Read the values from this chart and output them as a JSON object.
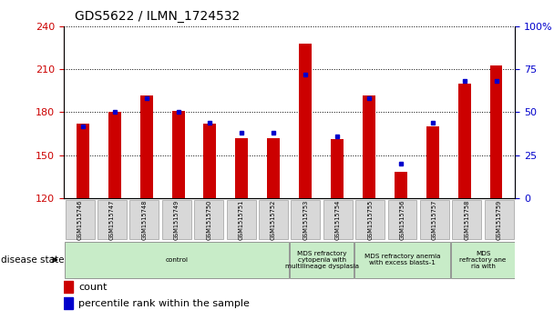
{
  "title": "GDS5622 / ILMN_1724532",
  "samples": [
    "GSM1515746",
    "GSM1515747",
    "GSM1515748",
    "GSM1515749",
    "GSM1515750",
    "GSM1515751",
    "GSM1515752",
    "GSM1515753",
    "GSM1515754",
    "GSM1515755",
    "GSM1515756",
    "GSM1515757",
    "GSM1515758",
    "GSM1515759"
  ],
  "counts": [
    172,
    180,
    192,
    181,
    172,
    162,
    162,
    228,
    161,
    192,
    138,
    170,
    200,
    213
  ],
  "percentiles": [
    42,
    50,
    58,
    50,
    44,
    38,
    38,
    72,
    36,
    58,
    20,
    44,
    68,
    68
  ],
  "ylim_left": [
    120,
    240
  ],
  "ylim_right": [
    0,
    100
  ],
  "yticks_left": [
    120,
    150,
    180,
    210,
    240
  ],
  "yticks_right": [
    0,
    25,
    50,
    75,
    100
  ],
  "bar_color": "#cc0000",
  "dot_color": "#0000cc",
  "disease_groups": [
    {
      "label": "control",
      "start": 0,
      "end": 7
    },
    {
      "label": "MDS refractory\ncytopenia with\nmultilineage dysplasia",
      "start": 7,
      "end": 9
    },
    {
      "label": "MDS refractory anemia\nwith excess blasts-1",
      "start": 9,
      "end": 12
    },
    {
      "label": "MDS\nrefractory ane\nria with",
      "start": 12,
      "end": 14
    }
  ],
  "group_color": "#c8ecc8",
  "sample_box_color": "#d8d8d8",
  "sample_box_edge": "#aaaaaa",
  "legend_count_label": "count",
  "legend_pct_label": "percentile rank within the sample",
  "disease_state_label": "disease state"
}
